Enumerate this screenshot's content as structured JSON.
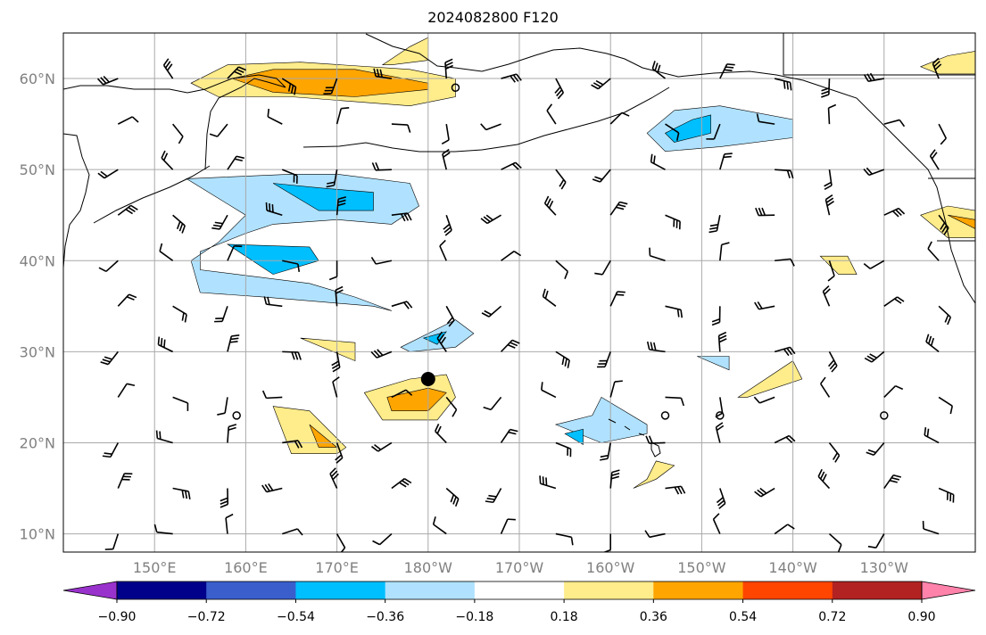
{
  "title": "2024082800 F120",
  "projection": "PlateCarree",
  "extent": {
    "lon_min": 140,
    "lon_max": 240,
    "lat_min": 8,
    "lat_max": 65
  },
  "lat_ticks": [
    {
      "value": 10,
      "label": "10°N"
    },
    {
      "value": 20,
      "label": "20°N"
    },
    {
      "value": 30,
      "label": "30°N"
    },
    {
      "value": 40,
      "label": "40°N"
    },
    {
      "value": 50,
      "label": "50°N"
    },
    {
      "value": 60,
      "label": "60°N"
    }
  ],
  "lon_ticks": [
    {
      "value": 150,
      "label": "150°E"
    },
    {
      "value": 160,
      "label": "160°E"
    },
    {
      "value": 170,
      "label": "170°E"
    },
    {
      "value": 180,
      "label": "180°W"
    },
    {
      "value": 190,
      "label": "170°W"
    },
    {
      "value": 200,
      "label": "160°W"
    },
    {
      "value": 210,
      "label": "150°W"
    },
    {
      "value": 220,
      "label": "140°W"
    },
    {
      "value": 230,
      "label": "130°W"
    }
  ],
  "colorbar": {
    "extend": "both",
    "levels": [
      -0.9,
      -0.72,
      -0.54,
      -0.36,
      -0.18,
      0.18,
      0.36,
      0.54,
      0.72,
      0.9
    ],
    "colors": [
      "#9932cc",
      "#00008b",
      "#3a5fcd",
      "#00bfff",
      "#b0e2ff",
      "#ffffff",
      "#ffec8b",
      "#ffa500",
      "#ff4500",
      "#b22222",
      "#ff82ab"
    ],
    "labels": [
      "−0.90",
      "−0.72",
      "−0.54",
      "−0.36",
      "−0.18",
      "0.18",
      "0.36",
      "0.54",
      "0.72",
      "0.90"
    ]
  },
  "colors": {
    "land_line": "#000000",
    "grid": "#a9a9a9",
    "background": "#ffffff",
    "tick_label": "#808080"
  },
  "storm_marker": {
    "lon": 180,
    "lat": 27,
    "color": "#000000"
  },
  "contour_areas": [
    {
      "level": "0.18",
      "lon": [
        154,
        158,
        166,
        178,
        183,
        183,
        178,
        165,
        157,
        154
      ],
      "lat": [
        59.5,
        61.5,
        61.8,
        61,
        60,
        58,
        57,
        58,
        58,
        59.5
      ]
    },
    {
      "level": "0.36",
      "lon": [
        158.5,
        163,
        172,
        180,
        180,
        172,
        163,
        158.5
      ],
      "lat": [
        60,
        61,
        61,
        59.5,
        58.8,
        58,
        58.5,
        60
      ]
    },
    {
      "level": "0.18",
      "lon": [
        175,
        178,
        180,
        180,
        176,
        175
      ],
      "lat": [
        61.5,
        63.5,
        64.5,
        62,
        61.5,
        61.5
      ]
    },
    {
      "level": "-0.18",
      "lon": [
        153.5,
        165,
        170,
        178,
        179,
        176,
        170,
        163,
        160,
        155,
        155,
        167,
        172,
        176,
        174,
        168,
        162,
        155,
        154,
        157,
        160,
        153.5
      ],
      "lat": [
        49,
        49.5,
        49.5,
        48.5,
        46,
        44,
        44.5,
        44,
        43,
        41,
        39,
        37.5,
        36,
        34.5,
        35,
        35.5,
        36,
        36.5,
        40,
        42,
        45,
        49
      ]
    },
    {
      "level": "-0.36",
      "lon": [
        163,
        168,
        174,
        174,
        168,
        163
      ],
      "lat": [
        48.5,
        48,
        47.5,
        45.5,
        45.5,
        48.5
      ]
    },
    {
      "level": "-0.36",
      "lon": [
        158,
        167,
        168,
        163,
        158
      ],
      "lat": [
        41.8,
        41.5,
        40,
        38.5,
        41.8
      ]
    },
    {
      "level": "-0.18",
      "lon": [
        204,
        207,
        212,
        220,
        220,
        212,
        206,
        204
      ],
      "lat": [
        54,
        56.5,
        57,
        55.5,
        53.5,
        52.5,
        52,
        54
      ]
    },
    {
      "level": "-0.36",
      "lon": [
        206,
        209,
        211,
        211,
        207,
        206
      ],
      "lat": [
        54,
        55.5,
        56,
        54,
        53,
        54
      ]
    },
    {
      "level": "0.18",
      "lon": [
        234,
        237,
        240,
        240,
        236,
        234
      ],
      "lat": [
        61.3,
        62.5,
        63,
        60.5,
        60.5,
        61.3
      ]
    },
    {
      "level": "0.18",
      "lon": [
        234,
        237,
        240,
        240,
        237,
        234
      ],
      "lat": [
        45,
        46,
        45.5,
        42.5,
        42.5,
        45
      ]
    },
    {
      "level": "0.36",
      "lon": [
        237,
        240,
        240,
        237
      ],
      "lat": [
        45,
        44.5,
        43.5,
        45
      ]
    },
    {
      "level": "0.18",
      "lon": [
        223,
        226,
        227,
        225,
        223
      ],
      "lat": [
        40.5,
        40.5,
        38.5,
        38.5,
        40.5
      ]
    },
    {
      "level": "0.18",
      "lon": [
        166,
        172,
        172,
        166
      ],
      "lat": [
        31.5,
        31,
        29,
        31.5
      ]
    },
    {
      "level": "-0.18",
      "lon": [
        177,
        183,
        185,
        183,
        178,
        177
      ],
      "lat": [
        30.5,
        33.5,
        32,
        30.5,
        30,
        30.5
      ]
    },
    {
      "level": "-0.36",
      "lon": [
        179.5,
        182,
        181,
        179.5
      ],
      "lat": [
        31.5,
        32.2,
        30.8,
        31.5
      ]
    },
    {
      "level": "0.18",
      "lon": [
        173,
        178,
        182,
        183,
        181,
        175,
        173
      ],
      "lat": [
        25.5,
        27,
        27.5,
        25,
        22.5,
        22.5,
        25.5
      ]
    },
    {
      "level": "0.36",
      "lon": [
        175.5,
        180,
        182,
        180,
        176,
        175.5
      ],
      "lat": [
        25,
        26,
        25.5,
        23.5,
        23.5,
        25
      ]
    },
    {
      "level": "0.18",
      "lon": [
        163,
        167,
        171,
        170,
        165,
        163
      ],
      "lat": [
        24,
        23.5,
        19.5,
        18.8,
        18.8,
        24
      ]
    },
    {
      "level": "0.36",
      "lon": [
        167,
        170,
        168,
        167
      ],
      "lat": [
        22,
        19.5,
        19.5,
        22
      ]
    },
    {
      "level": "-0.18",
      "lon": [
        194,
        198,
        199,
        204,
        204,
        199,
        194
      ],
      "lat": [
        22,
        23,
        25,
        22,
        21,
        20,
        22
      ]
    },
    {
      "level": "-0.36",
      "lon": [
        195,
        197,
        197,
        195
      ],
      "lat": [
        21,
        21.5,
        19.8,
        21
      ]
    },
    {
      "level": "-0.18",
      "lon": [
        209.5,
        213,
        213,
        209.5
      ],
      "lat": [
        29.5,
        29.5,
        28,
        29.5
      ]
    },
    {
      "level": "0.18",
      "lon": [
        214,
        220,
        221,
        215,
        214
      ],
      "lat": [
        25,
        29,
        27,
        25,
        25
      ]
    },
    {
      "level": "0.18",
      "lon": [
        202.5,
        205,
        207,
        205,
        204,
        202.5
      ],
      "lat": [
        15,
        16,
        17.5,
        18,
        16,
        15
      ]
    }
  ]
}
